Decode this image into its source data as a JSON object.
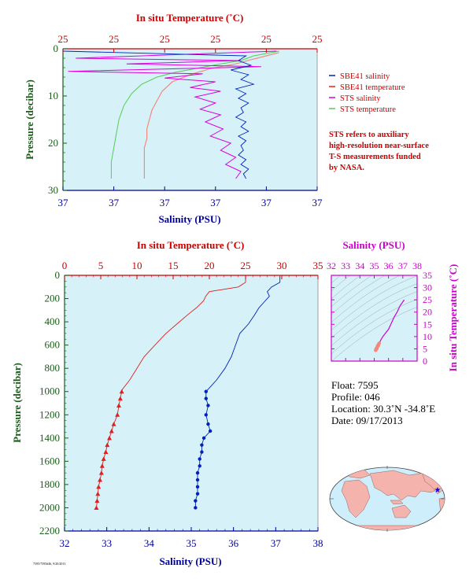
{
  "colors": {
    "plot_bg": "#d6f2f8",
    "sbe_salinity": "#0022bb",
    "sbe_temperature": "#e02020",
    "sts_salinity": "#dd00dd",
    "sts_temperature": "#55cc55",
    "salmon": "#f08a80",
    "axis_red": "#cc0000",
    "axis_blue": "#000099",
    "axis_green": "#1a5c1a",
    "axis_magenta": "#cc00cc"
  },
  "legend": [
    {
      "label": "SBE41 salinity",
      "color": "#0022bb"
    },
    {
      "label": "SBE41 temperature",
      "color": "#e02020"
    },
    {
      "label": "STS salinity",
      "color": "#dd00dd"
    },
    {
      "label": "STS temperature",
      "color": "#55cc55"
    }
  ],
  "note_lines": [
    "STS refers to auxiliary",
    "high-resolution near-surface",
    "T-S measurements funded",
    "by NASA."
  ],
  "info": {
    "float": "Float:  7595",
    "profile": "Profile:  046",
    "location": "Location:  30.3˚N  -34.8˚E",
    "date": "Date:  09/17/2013"
  },
  "footer_id": "7595/7595#46, 9/20/2013",
  "chart_data": [
    {
      "type": "line",
      "name": "near-surface",
      "top_axis_label": "In situ Temperature (˚C)",
      "top_tick_labels": [
        "25",
        "25",
        "25",
        "25",
        "25",
        "25"
      ],
      "bottom_axis_label": "Salinity (PSU)",
      "bottom_tick_labels": [
        "37",
        "37",
        "37",
        "37",
        "37",
        "37"
      ],
      "ylabel": "Pressure (decibar)",
      "y_tick_labels": [
        "0",
        "10",
        "20",
        "30"
      ],
      "ylim": [
        0,
        30
      ],
      "sbe_salinity": [
        [
          0.0,
          0.5
        ],
        [
          0.72,
          1.5
        ],
        [
          0.69,
          2.5
        ],
        [
          0.74,
          3.5
        ],
        [
          0.66,
          4.5
        ],
        [
          0.73,
          5.5
        ],
        [
          0.7,
          6.5
        ],
        [
          0.75,
          7.5
        ],
        [
          0.68,
          8.5
        ],
        [
          0.72,
          9.5
        ],
        [
          0.69,
          10.5
        ],
        [
          0.73,
          11.5
        ],
        [
          0.7,
          12.5
        ],
        [
          0.71,
          13.5
        ],
        [
          0.68,
          14.5
        ],
        [
          0.72,
          15.5
        ],
        [
          0.7,
          16.5
        ],
        [
          0.73,
          17.5
        ],
        [
          0.69,
          18.5
        ],
        [
          0.72,
          19.5
        ],
        [
          0.7,
          20.5
        ],
        [
          0.71,
          21.5
        ],
        [
          0.69,
          22.5
        ],
        [
          0.72,
          23.5
        ],
        [
          0.7,
          24.5
        ],
        [
          0.73,
          25.5
        ],
        [
          0.71,
          26.5
        ],
        [
          0.72,
          27.5
        ]
      ],
      "sbe_temperature": [
        [
          0.85,
          0.8
        ],
        [
          0.8,
          1.5
        ],
        [
          0.74,
          2.3
        ],
        [
          0.68,
          3.2
        ],
        [
          0.58,
          4.2
        ],
        [
          0.5,
          5.5
        ],
        [
          0.43,
          7.0
        ],
        [
          0.39,
          9.0
        ],
        [
          0.37,
          11.0
        ],
        [
          0.35,
          13.0
        ],
        [
          0.34,
          15.0
        ],
        [
          0.33,
          17.0
        ],
        [
          0.33,
          19.0
        ],
        [
          0.32,
          21.0
        ],
        [
          0.32,
          23.0
        ],
        [
          0.32,
          25.0
        ],
        [
          0.32,
          27.5
        ]
      ],
      "sts_salinity": [
        [
          0.84,
          0.5
        ],
        [
          0.05,
          2.0
        ],
        [
          0.7,
          2.5
        ],
        [
          0.25,
          3.2
        ],
        [
          0.78,
          3.8
        ],
        [
          0.02,
          4.8
        ],
        [
          0.55,
          5.3
        ],
        [
          0.4,
          6.2
        ],
        [
          0.6,
          7.0
        ],
        [
          0.5,
          8.2
        ],
        [
          0.62,
          9.0
        ],
        [
          0.52,
          10.2
        ],
        [
          0.6,
          11.5
        ],
        [
          0.54,
          12.8
        ],
        [
          0.62,
          14.0
        ],
        [
          0.56,
          15.5
        ],
        [
          0.63,
          17.0
        ],
        [
          0.58,
          18.5
        ],
        [
          0.66,
          20.0
        ],
        [
          0.62,
          21.5
        ],
        [
          0.68,
          23.0
        ],
        [
          0.64,
          24.5
        ],
        [
          0.7,
          26.0
        ],
        [
          0.68,
          27.5
        ]
      ],
      "sts_temperature": [
        [
          0.85,
          0.5
        ],
        [
          0.75,
          1.5
        ],
        [
          0.7,
          2.5
        ],
        [
          0.62,
          3.2
        ],
        [
          0.52,
          4.2
        ],
        [
          0.44,
          5.0
        ],
        [
          0.37,
          6.0
        ],
        [
          0.31,
          7.5
        ],
        [
          0.27,
          9.5
        ],
        [
          0.24,
          12.0
        ],
        [
          0.22,
          15.0
        ],
        [
          0.21,
          18.0
        ],
        [
          0.2,
          21.0
        ],
        [
          0.19,
          24.0
        ],
        [
          0.19,
          27.5
        ]
      ]
    },
    {
      "type": "line",
      "name": "full-profile",
      "top_axis_label": "In situ Temperature (˚C)",
      "top_ticks": [
        0,
        5,
        10,
        15,
        20,
        25,
        30,
        35
      ],
      "xlim_temperature": [
        0,
        35
      ],
      "bottom_axis_label": "Salinity (PSU)",
      "bottom_ticks": [
        32,
        33,
        34,
        35,
        36,
        37,
        38
      ],
      "xlim_salinity": [
        32,
        38
      ],
      "ylabel": "Pressure (decibar)",
      "y_ticks": [
        0,
        200,
        400,
        600,
        800,
        1000,
        1200,
        1400,
        1600,
        1800,
        2000,
        2200
      ],
      "ylim": [
        0,
        2200
      ],
      "temperature": [
        [
          25.0,
          5
        ],
        [
          25.0,
          60
        ],
        [
          24.0,
          100
        ],
        [
          20.0,
          140
        ],
        [
          19.5,
          180
        ],
        [
          19.2,
          220
        ],
        [
          18.2,
          280
        ],
        [
          17.0,
          340
        ],
        [
          15.5,
          420
        ],
        [
          14.0,
          500
        ],
        [
          12.5,
          600
        ],
        [
          11.0,
          700
        ],
        [
          10.0,
          800
        ],
        [
          9.0,
          900
        ],
        [
          8.0,
          980
        ],
        [
          7.9,
          1000
        ],
        [
          7.7,
          1060
        ],
        [
          7.5,
          1120
        ],
        [
          7.3,
          1200
        ],
        [
          6.8,
          1280
        ],
        [
          6.5,
          1340
        ],
        [
          6.2,
          1400
        ],
        [
          5.9,
          1460
        ],
        [
          5.7,
          1520
        ],
        [
          5.4,
          1580
        ],
        [
          5.2,
          1640
        ],
        [
          5.1,
          1700
        ],
        [
          4.9,
          1760
        ],
        [
          4.7,
          1820
        ],
        [
          4.6,
          1880
        ],
        [
          4.5,
          1940
        ],
        [
          4.4,
          2000
        ]
      ],
      "temperature_markers_from": 1000,
      "salinity": [
        [
          37.1,
          5
        ],
        [
          37.1,
          60
        ],
        [
          36.9,
          100
        ],
        [
          36.8,
          140
        ],
        [
          36.85,
          180
        ],
        [
          36.75,
          220
        ],
        [
          36.6,
          280
        ],
        [
          36.5,
          340
        ],
        [
          36.35,
          420
        ],
        [
          36.15,
          500
        ],
        [
          36.05,
          600
        ],
        [
          35.95,
          700
        ],
        [
          35.8,
          800
        ],
        [
          35.6,
          900
        ],
        [
          35.4,
          980
        ],
        [
          35.35,
          1000
        ],
        [
          35.35,
          1060
        ],
        [
          35.4,
          1120
        ],
        [
          35.35,
          1200
        ],
        [
          35.4,
          1280
        ],
        [
          35.45,
          1340
        ],
        [
          35.3,
          1400
        ],
        [
          35.25,
          1460
        ],
        [
          35.25,
          1520
        ],
        [
          35.2,
          1580
        ],
        [
          35.2,
          1640
        ],
        [
          35.15,
          1700
        ],
        [
          35.15,
          1760
        ],
        [
          35.15,
          1820
        ],
        [
          35.15,
          1880
        ],
        [
          35.1,
          1940
        ],
        [
          35.1,
          2000
        ]
      ],
      "salinity_markers_from": 1000
    },
    {
      "type": "scatter",
      "name": "ts-diagram",
      "top_axis_label": "Salinity (PSU)",
      "x_ticks": [
        32,
        33,
        34,
        35,
        36,
        37,
        38
      ],
      "xlim": [
        32,
        38
      ],
      "right_axis_label": "In situ Temperature (˚C)",
      "y_ticks": [
        0,
        5,
        10,
        15,
        20,
        25,
        30,
        35
      ],
      "ylim": [
        0,
        35
      ],
      "profile": [
        [
          35.1,
          4.4
        ],
        [
          35.2,
          5.2
        ],
        [
          35.35,
          7.3
        ],
        [
          35.45,
          8.5
        ],
        [
          35.6,
          10.0
        ],
        [
          35.8,
          11.5
        ],
        [
          36.0,
          13.0
        ],
        [
          36.2,
          15.5
        ],
        [
          36.4,
          18.0
        ],
        [
          36.6,
          20.0
        ],
        [
          36.8,
          22.5
        ],
        [
          37.1,
          25.0
        ]
      ],
      "markers": [
        [
          35.1,
          4.4
        ],
        [
          35.12,
          4.8
        ],
        [
          35.15,
          5.2
        ],
        [
          35.2,
          5.6
        ],
        [
          35.22,
          6.0
        ],
        [
          35.25,
          6.4
        ],
        [
          35.3,
          6.8
        ],
        [
          35.35,
          7.3
        ],
        [
          35.18,
          5.0
        ],
        [
          35.28,
          6.2
        ]
      ]
    }
  ]
}
